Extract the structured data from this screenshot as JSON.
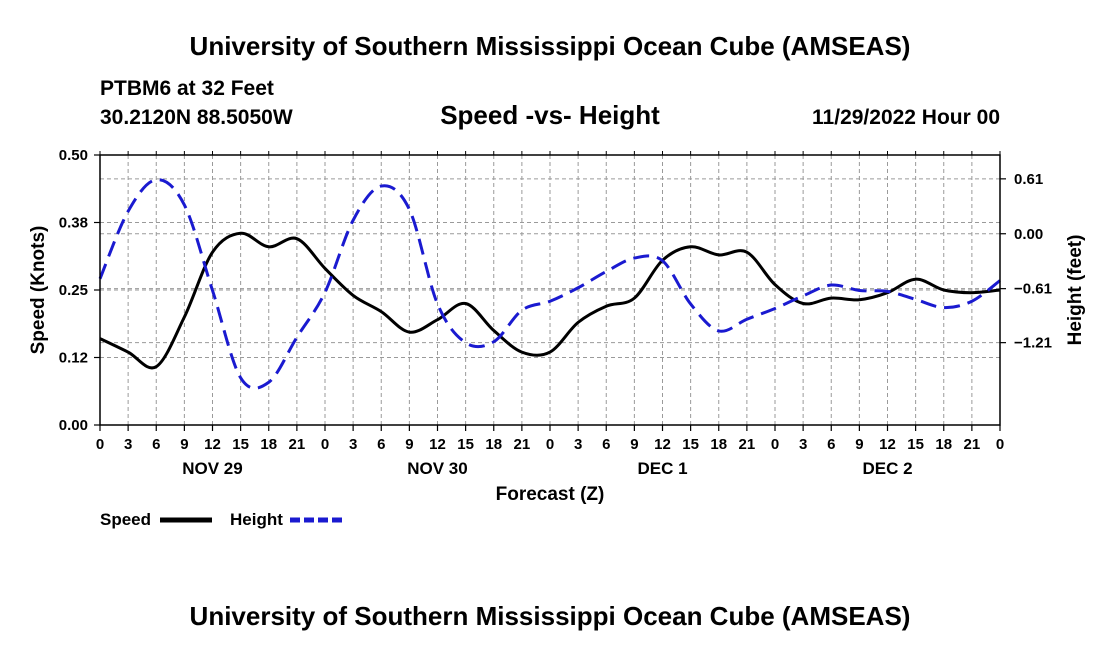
{
  "header": {
    "title": "University of Southern Mississippi Ocean Cube (AMSEAS)",
    "station": "PTBM6 at 32 Feet",
    "coords": "30.2120N  88.5050W",
    "chart_title": "Speed -vs- Height",
    "datetime": "11/29/2022 Hour 00"
  },
  "footer": {
    "title": "University of Southern Mississippi Ocean Cube (AMSEAS)"
  },
  "legend": {
    "speed_label": "Speed",
    "height_label": "Height"
  },
  "colors": {
    "speed": "#000000",
    "height": "#1a1ad0",
    "grid": "#9a9a9a"
  },
  "chart_data": {
    "type": "line",
    "title": "Speed -vs- Height",
    "xlabel": "Forecast (Z)",
    "ylabel": "Speed (Knots)",
    "y2label": "Height (feet)",
    "xlim": [
      0,
      96
    ],
    "ylim": [
      0,
      0.5
    ],
    "y2lim": [
      -2.125,
      0.875
    ],
    "x_tick_labels": [
      "0",
      "3",
      "6",
      "9",
      "12",
      "15",
      "18",
      "21",
      "0",
      "3",
      "6",
      "9",
      "12",
      "15",
      "18",
      "21",
      "0",
      "3",
      "6",
      "9",
      "12",
      "15",
      "18",
      "21",
      "0",
      "3",
      "6",
      "9",
      "12",
      "15",
      "18",
      "21",
      "0"
    ],
    "day_labels": [
      {
        "x": 12,
        "label": "NOV 29"
      },
      {
        "x": 36,
        "label": "NOV 30"
      },
      {
        "x": 60,
        "label": "DEC 1"
      },
      {
        "x": 84,
        "label": "DEC 2"
      }
    ],
    "y_ticks": [
      0,
      0.125,
      0.25,
      0.375,
      0.5
    ],
    "y_tick_labels": [
      "0.00",
      "0.12",
      "0.25",
      "0.38",
      "0.50"
    ],
    "y2_ticks": [
      0.61,
      0.0,
      -0.61,
      -1.21
    ],
    "y2_tick_labels": [
      "0.61",
      "0.00",
      "−0.61",
      "−1.21"
    ],
    "grid": true,
    "series": [
      {
        "name": "Speed",
        "axis": "left",
        "style": "solid",
        "x": [
          0,
          3,
          6,
          9,
          12,
          15,
          18,
          21,
          24,
          27,
          30,
          33,
          36,
          39,
          42,
          45,
          48,
          51,
          54,
          57,
          60,
          63,
          66,
          69,
          72,
          75,
          78,
          81,
          84,
          87,
          90,
          93,
          96
        ],
        "values": [
          0.16,
          0.135,
          0.108,
          0.2,
          0.32,
          0.355,
          0.33,
          0.345,
          0.29,
          0.24,
          0.21,
          0.172,
          0.195,
          0.225,
          0.175,
          0.135,
          0.135,
          0.19,
          0.22,
          0.235,
          0.305,
          0.33,
          0.315,
          0.32,
          0.26,
          0.225,
          0.235,
          0.232,
          0.245,
          0.27,
          0.25,
          0.245,
          0.25
        ]
      },
      {
        "name": "Height",
        "axis": "right",
        "style": "dashed",
        "x": [
          0,
          3,
          6,
          9,
          12,
          15,
          18,
          21,
          24,
          27,
          30,
          33,
          36,
          39,
          42,
          45,
          48,
          51,
          54,
          57,
          60,
          63,
          66,
          69,
          72,
          75,
          78,
          81,
          84,
          87,
          90,
          93,
          96
        ],
        "values": [
          -0.5,
          0.25,
          0.6,
          0.32,
          -0.63,
          -1.6,
          -1.65,
          -1.15,
          -0.65,
          0.15,
          0.53,
          0.27,
          -0.78,
          -1.21,
          -1.2,
          -0.85,
          -0.75,
          -0.6,
          -0.42,
          -0.27,
          -0.3,
          -0.78,
          -1.08,
          -0.95,
          -0.83,
          -0.69,
          -0.57,
          -0.63,
          -0.64,
          -0.73,
          -0.82,
          -0.75,
          -0.52
        ]
      }
    ]
  }
}
